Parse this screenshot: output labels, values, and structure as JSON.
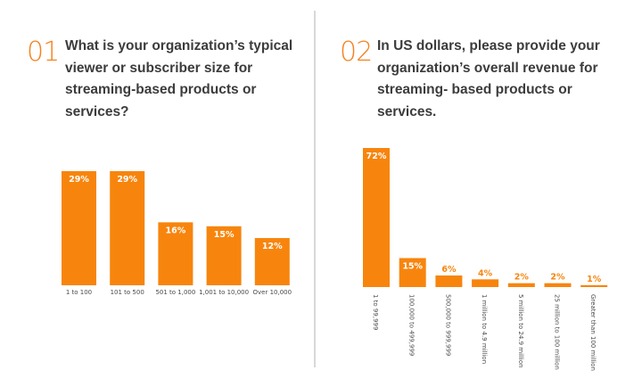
{
  "panels": [
    {
      "number": "01",
      "question": "What is your organization’s typical viewer or subscriber size for streaming-based products or services?"
    },
    {
      "number": "02",
      "question": "In US dollars, please provide your organization’s overall revenue for streaming- based products or services."
    }
  ],
  "colors": {
    "accent": "#f7850d",
    "text": "#3c3c3c",
    "divider": "#d8d8d8"
  },
  "chart_data": [
    {
      "type": "bar",
      "title": "What is your organization’s typical viewer or subscriber size for streaming-based products or services?",
      "categories": [
        "1 to 100",
        "101 to 500",
        "501 to 1,000",
        "1,001 to 10,000",
        "Over 10,000"
      ],
      "values": [
        29,
        29,
        16,
        15,
        12
      ],
      "labels": [
        "29%",
        "29%",
        "16%",
        "15%",
        "12%"
      ],
      "xlabel": "",
      "ylabel": "",
      "unit": "%",
      "grid": false,
      "legend": "none"
    },
    {
      "type": "bar",
      "title": "In US dollars, please provide your organization’s overall revenue for streaming- based products or services.",
      "categories": [
        "1 to 99,999",
        "100,000 to 499,999",
        "500,000 to 999,999",
        "1 million to 4.9 million",
        "5 million to 24.9 million",
        "25 million to 100 million",
        "Greater than 100 million"
      ],
      "values": [
        72,
        15,
        6,
        4,
        2,
        2,
        1
      ],
      "labels": [
        "72%",
        "15%",
        "6%",
        "4%",
        "2%",
        "2%",
        "1%"
      ],
      "xlabel": "",
      "ylabel": "",
      "unit": "%",
      "grid": false,
      "legend": "none",
      "category_label_orientation": "vertical"
    }
  ]
}
